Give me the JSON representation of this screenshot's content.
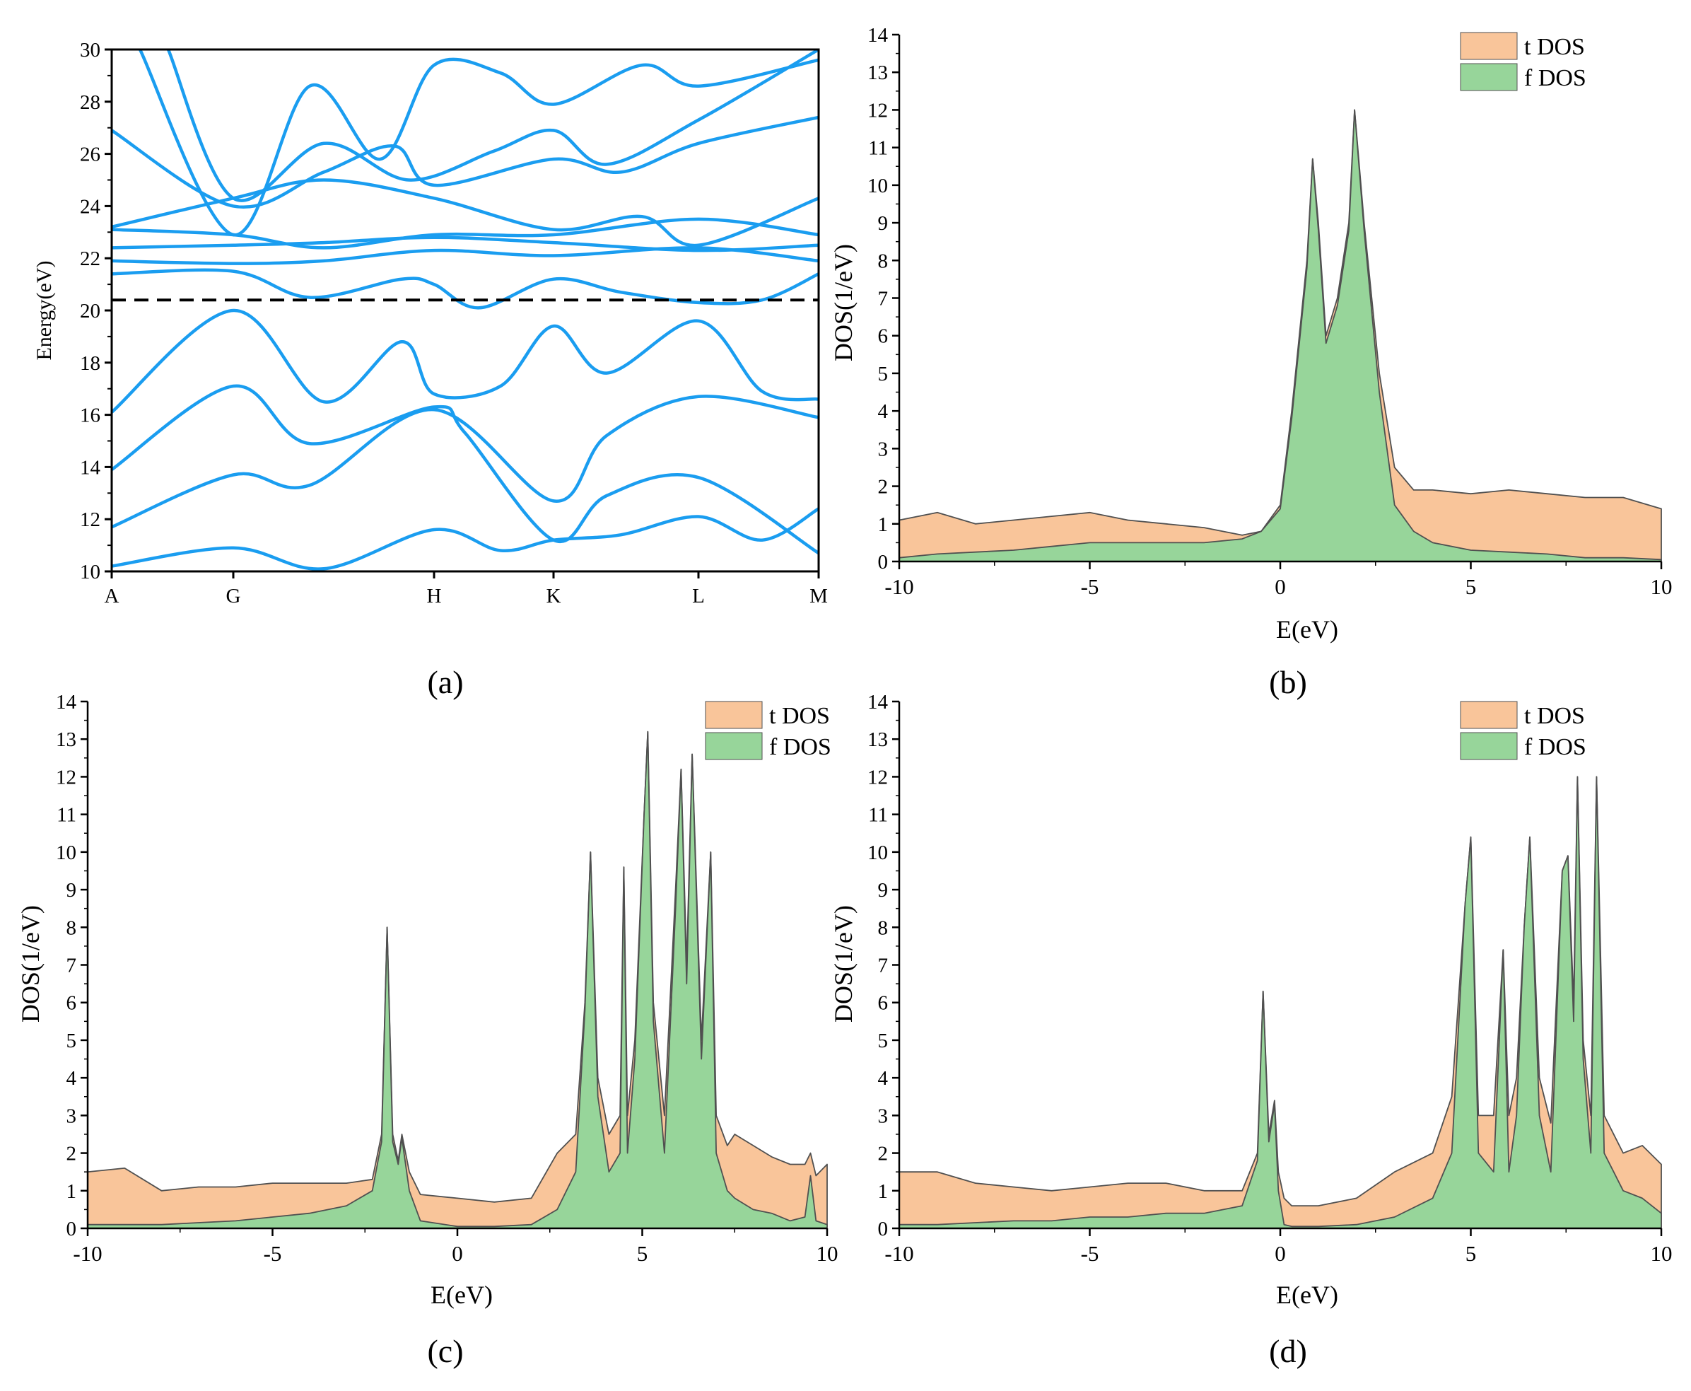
{
  "colors": {
    "band": "#1a9df0",
    "fermi": "#000000",
    "tdos_fill": "#f9c59a",
    "fdos_fill": "#97d59a",
    "outline": "#505050"
  },
  "chart_data": [
    {
      "panel": "(a)",
      "type": "line",
      "ylabel": "Energy(eV)",
      "xlabel": "",
      "x_tick_labels": [
        "A",
        "G",
        "H",
        "K",
        "L",
        "M"
      ],
      "x_tick_positions": [
        0,
        0.172,
        0.456,
        0.625,
        0.83,
        1.0
      ],
      "ylim": [
        10,
        30
      ],
      "y_ticks": [
        10,
        12,
        14,
        16,
        18,
        20,
        22,
        24,
        26,
        28,
        30
      ],
      "fermi_level": 20.4,
      "series": [
        {
          "name": "band-1",
          "x": [
            0,
            0.172,
            0.3,
            0.456,
            0.55,
            0.625,
            0.72,
            0.83,
            0.92,
            1.0
          ],
          "y": [
            10.2,
            10.9,
            10.1,
            11.6,
            10.8,
            11.2,
            11.4,
            12.1,
            11.2,
            12.4
          ]
        },
        {
          "name": "band-2",
          "x": [
            0,
            0.172,
            0.28,
            0.456,
            0.625,
            0.7,
            0.83,
            1.0
          ],
          "y": [
            11.7,
            13.7,
            13.3,
            16.2,
            12.7,
            15.2,
            16.7,
            15.9
          ]
        },
        {
          "name": "band-3",
          "x": [
            0,
            0.172,
            0.28,
            0.456,
            0.5,
            0.625,
            0.7,
            0.83,
            1.0
          ],
          "y": [
            13.9,
            17.1,
            14.9,
            16.3,
            15.3,
            11.2,
            12.9,
            13.6,
            10.7
          ]
        },
        {
          "name": "band-4",
          "x": [
            0,
            0.172,
            0.3,
            0.41,
            0.456,
            0.55,
            0.625,
            0.7,
            0.83,
            0.92,
            1.0
          ],
          "y": [
            16.1,
            20.0,
            16.5,
            18.8,
            16.8,
            17.1,
            19.4,
            17.6,
            19.6,
            16.9,
            16.6
          ]
        },
        {
          "name": "band-5",
          "x": [
            0,
            0.172,
            0.28,
            0.41,
            0.456,
            0.52,
            0.625,
            0.72,
            0.83,
            0.92,
            1.0
          ],
          "y": [
            21.4,
            21.5,
            20.5,
            21.2,
            21.0,
            20.1,
            21.2,
            20.7,
            20.3,
            20.4,
            21.4
          ]
        },
        {
          "name": "band-6",
          "x": [
            0,
            0.172,
            0.3,
            0.456,
            0.625,
            0.83,
            1.0
          ],
          "y": [
            21.9,
            21.8,
            21.9,
            22.3,
            22.1,
            22.4,
            21.9
          ]
        },
        {
          "name": "band-7",
          "x": [
            0,
            0.172,
            0.3,
            0.456,
            0.625,
            0.83,
            1.0
          ],
          "y": [
            22.4,
            22.5,
            22.6,
            22.8,
            22.6,
            22.3,
            22.5
          ]
        },
        {
          "name": "band-8",
          "x": [
            0,
            0.172,
            0.3,
            0.456,
            0.625,
            0.83,
            1.0
          ],
          "y": [
            23.1,
            22.9,
            22.4,
            22.9,
            22.9,
            23.5,
            22.9
          ]
        },
        {
          "name": "band-9",
          "x": [
            0,
            0.172,
            0.3,
            0.456,
            0.625,
            0.75,
            0.83,
            1.0
          ],
          "y": [
            23.2,
            24.3,
            25.0,
            24.3,
            23.1,
            23.6,
            22.5,
            24.3
          ]
        },
        {
          "name": "band-10",
          "x": [
            0,
            0.172,
            0.3,
            0.4,
            0.456,
            0.625,
            0.72,
            0.83,
            1.0
          ],
          "y": [
            26.9,
            24.0,
            25.3,
            26.3,
            24.8,
            25.8,
            25.3,
            26.4,
            27.4
          ]
        },
        {
          "name": "band-11",
          "x": [
            0.04,
            0.172,
            0.28,
            0.38,
            0.456,
            0.55,
            0.625,
            0.75,
            0.83,
            1.0
          ],
          "y": [
            30.0,
            22.9,
            28.6,
            25.8,
            29.4,
            29.1,
            27.9,
            29.4,
            28.6,
            29.6
          ]
        },
        {
          "name": "band-12",
          "x": [
            0.08,
            0.172,
            0.3,
            0.42,
            0.54,
            0.625,
            0.7,
            0.83,
            1.0
          ],
          "y": [
            30.0,
            24.3,
            26.4,
            25.0,
            26.1,
            26.9,
            25.6,
            27.3,
            30.0
          ]
        }
      ]
    },
    {
      "panel": "(b)",
      "type": "area",
      "xlabel": "E(eV)",
      "ylabel": "DOS(1/eV)",
      "xlim": [
        -10,
        10
      ],
      "ylim": [
        0,
        14
      ],
      "x_ticks": [
        -10,
        -5,
        0,
        5,
        10
      ],
      "y_ticks": [
        0,
        1,
        2,
        3,
        4,
        5,
        6,
        7,
        8,
        9,
        10,
        11,
        12,
        13,
        14
      ],
      "legend": [
        "t DOS",
        "f DOS"
      ],
      "legend_position": "top-right",
      "series": [
        {
          "name": "t DOS",
          "x": [
            -10,
            -9,
            -8,
            -7,
            -6,
            -5,
            -4,
            -3,
            -2,
            -1,
            -0.5,
            0,
            0.3,
            0.7,
            0.85,
            1.0,
            1.2,
            1.5,
            1.8,
            1.95,
            2.2,
            2.6,
            3,
            3.5,
            4,
            5,
            6,
            7,
            8,
            9,
            10
          ],
          "y": [
            1.1,
            1.3,
            1.0,
            1.1,
            1.2,
            1.3,
            1.1,
            1.0,
            0.9,
            0.7,
            0.8,
            1.5,
            4.0,
            8.0,
            10.7,
            9.0,
            6.0,
            7.0,
            9.0,
            12.0,
            9.0,
            5.0,
            2.5,
            1.9,
            1.9,
            1.8,
            1.9,
            1.8,
            1.7,
            1.7,
            1.4
          ]
        },
        {
          "name": "f DOS",
          "x": [
            -10,
            -9,
            -8,
            -7,
            -6,
            -5,
            -4,
            -3,
            -2,
            -1,
            -0.5,
            0,
            0.3,
            0.7,
            0.85,
            1.0,
            1.2,
            1.5,
            1.8,
            1.95,
            2.2,
            2.6,
            3,
            3.5,
            4,
            5,
            6,
            7,
            8,
            9,
            10
          ],
          "y": [
            0.1,
            0.2,
            0.25,
            0.3,
            0.4,
            0.5,
            0.5,
            0.5,
            0.5,
            0.6,
            0.8,
            1.4,
            3.8,
            7.8,
            10.7,
            8.8,
            5.8,
            6.8,
            8.8,
            12.0,
            8.8,
            4.5,
            1.5,
            0.8,
            0.5,
            0.3,
            0.25,
            0.2,
            0.1,
            0.1,
            0.05
          ]
        }
      ]
    },
    {
      "panel": "(c)",
      "type": "area",
      "xlabel": "E(eV)",
      "ylabel": "DOS(1/eV)",
      "xlim": [
        -10,
        10
      ],
      "ylim": [
        0,
        14
      ],
      "x_ticks": [
        -10,
        -5,
        0,
        5,
        10
      ],
      "y_ticks": [
        0,
        1,
        2,
        3,
        4,
        5,
        6,
        7,
        8,
        9,
        10,
        11,
        12,
        13,
        14
      ],
      "legend": [
        "t DOS",
        "f DOS"
      ],
      "legend_position": "top-right",
      "series": [
        {
          "name": "t DOS",
          "x": [
            -10,
            -9,
            -8,
            -7,
            -6,
            -5,
            -4,
            -3,
            -2.3,
            -2.05,
            -1.9,
            -1.75,
            -1.6,
            -1.5,
            -1.3,
            -1.0,
            0,
            1,
            2,
            2.7,
            3.2,
            3.45,
            3.6,
            3.8,
            4.1,
            4.4,
            4.5,
            4.6,
            4.8,
            5.05,
            5.15,
            5.3,
            5.6,
            5.9,
            6.05,
            6.2,
            6.35,
            6.6,
            6.85,
            7.0,
            7.3,
            7.5,
            8,
            8.5,
            9,
            9.4,
            9.55,
            9.7,
            10
          ],
          "y": [
            1.5,
            1.6,
            1.0,
            1.1,
            1.1,
            1.2,
            1.2,
            1.2,
            1.3,
            2.5,
            8.0,
            2.5,
            1.8,
            2.5,
            1.5,
            0.9,
            0.8,
            0.7,
            0.8,
            2.0,
            2.5,
            6.0,
            10.0,
            4.0,
            2.5,
            3.0,
            9.6,
            3.0,
            5.0,
            11.0,
            13.2,
            6.0,
            3.0,
            9.0,
            12.2,
            7.0,
            12.6,
            5.0,
            10.0,
            3.0,
            2.2,
            2.5,
            2.2,
            1.9,
            1.7,
            1.7,
            2.0,
            1.4,
            1.7
          ]
        },
        {
          "name": "f DOS",
          "x": [
            -10,
            -9,
            -8,
            -7,
            -6,
            -5,
            -4,
            -3,
            -2.3,
            -2.05,
            -1.9,
            -1.75,
            -1.6,
            -1.5,
            -1.3,
            -1.0,
            0,
            1,
            2,
            2.7,
            3.2,
            3.45,
            3.6,
            3.8,
            4.1,
            4.4,
            4.5,
            4.6,
            4.8,
            5.05,
            5.15,
            5.3,
            5.6,
            5.9,
            6.05,
            6.2,
            6.35,
            6.6,
            6.85,
            7.0,
            7.3,
            7.5,
            8,
            8.5,
            9,
            9.4,
            9.55,
            9.7,
            10
          ],
          "y": [
            0.1,
            0.1,
            0.1,
            0.15,
            0.2,
            0.3,
            0.4,
            0.6,
            1.0,
            2.3,
            8.0,
            2.3,
            1.7,
            2.4,
            1.0,
            0.2,
            0.05,
            0.05,
            0.1,
            0.5,
            1.5,
            5.8,
            10.0,
            3.5,
            1.5,
            2.0,
            9.6,
            2.0,
            4.5,
            11.0,
            13.2,
            5.5,
            2.0,
            8.5,
            12.2,
            6.5,
            12.6,
            4.5,
            10.0,
            2.0,
            1.0,
            0.8,
            0.5,
            0.4,
            0.2,
            0.3,
            1.4,
            0.2,
            0.1
          ]
        }
      ]
    },
    {
      "panel": "(d)",
      "type": "area",
      "xlabel": "E(eV)",
      "ylabel": "DOS(1/eV)",
      "xlim": [
        -10,
        10
      ],
      "ylim": [
        0,
        14
      ],
      "x_ticks": [
        -10,
        -5,
        0,
        5,
        10
      ],
      "y_ticks": [
        0,
        1,
        2,
        3,
        4,
        5,
        6,
        7,
        8,
        9,
        10,
        11,
        12,
        13,
        14
      ],
      "legend": [
        "t DOS",
        "f DOS"
      ],
      "legend_position": "top-right",
      "series": [
        {
          "name": "t DOS",
          "x": [
            -10,
            -9,
            -8,
            -7,
            -6,
            -5,
            -4,
            -3,
            -2,
            -1,
            -0.6,
            -0.45,
            -0.3,
            -0.15,
            -0.05,
            0.1,
            0.3,
            1,
            2,
            3,
            4,
            4.5,
            4.85,
            5.0,
            5.2,
            5.6,
            5.85,
            6.0,
            6.2,
            6.4,
            6.55,
            6.8,
            7.1,
            7.4,
            7.55,
            7.7,
            7.8,
            7.95,
            8.15,
            8.3,
            8.5,
            9,
            9.5,
            10
          ],
          "y": [
            1.5,
            1.5,
            1.2,
            1.1,
            1.0,
            1.1,
            1.2,
            1.2,
            1.0,
            1.0,
            2.0,
            6.3,
            2.5,
            3.4,
            1.5,
            0.8,
            0.6,
            0.6,
            0.8,
            1.5,
            2.0,
            3.5,
            8.6,
            10.4,
            3.0,
            3.0,
            7.4,
            3.0,
            4.0,
            8.0,
            10.4,
            4.0,
            2.8,
            9.5,
            9.9,
            6.0,
            12.0,
            5.0,
            3.0,
            12.0,
            3.0,
            2.0,
            2.2,
            1.7
          ]
        },
        {
          "name": "f DOS",
          "x": [
            -10,
            -9,
            -8,
            -7,
            -6,
            -5,
            -4,
            -3,
            -2,
            -1,
            -0.6,
            -0.45,
            -0.3,
            -0.15,
            -0.05,
            0.1,
            0.3,
            1,
            2,
            3,
            4,
            4.5,
            4.85,
            5.0,
            5.2,
            5.6,
            5.85,
            6.0,
            6.2,
            6.4,
            6.55,
            6.8,
            7.1,
            7.4,
            7.55,
            7.7,
            7.8,
            7.95,
            8.15,
            8.3,
            8.5,
            9,
            9.5,
            10
          ],
          "y": [
            0.1,
            0.1,
            0.15,
            0.2,
            0.2,
            0.3,
            0.3,
            0.4,
            0.4,
            0.6,
            1.8,
            6.3,
            2.3,
            3.3,
            1.0,
            0.1,
            0.05,
            0.05,
            0.1,
            0.3,
            0.8,
            2.0,
            8.6,
            10.4,
            2.0,
            1.5,
            7.4,
            1.5,
            3.0,
            8.0,
            10.4,
            3.0,
            1.5,
            9.5,
            9.9,
            5.5,
            12.0,
            4.5,
            2.0,
            12.0,
            2.0,
            1.0,
            0.8,
            0.4
          ]
        }
      ]
    }
  ],
  "panels": [
    {
      "label": "(a)"
    },
    {
      "label": "(b)"
    },
    {
      "label": "(c)"
    },
    {
      "label": "(d)"
    }
  ]
}
